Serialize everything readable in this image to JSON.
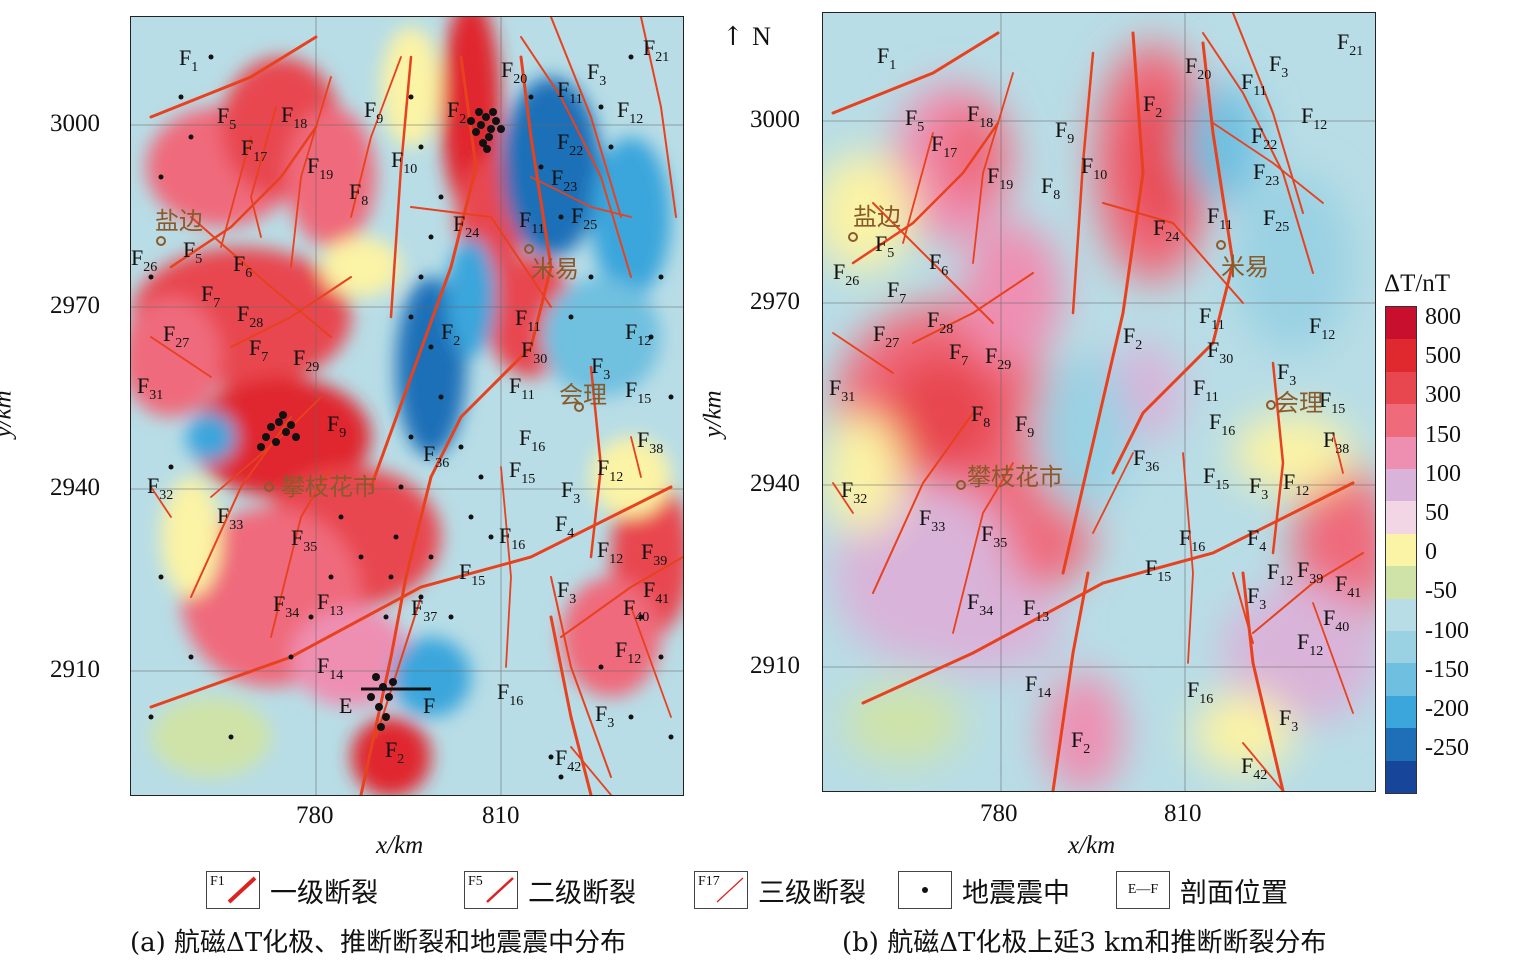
{
  "north": "N",
  "panel_a": {
    "y_ticks": [
      "3000",
      "2970",
      "2940",
      "2910"
    ],
    "x_ticks": [
      "780",
      "810"
    ],
    "x_axis_label": "x/km",
    "y_axis_label": "y/km",
    "cities": [
      "盐边",
      "米易",
      "会理",
      "攀枝花市"
    ],
    "profile_labels": [
      "E",
      "F"
    ],
    "caption": "(a) 航磁ΔT化极、推断断裂和地震震中分布"
  },
  "panel_b": {
    "y_ticks": [
      "3000",
      "2970",
      "2940",
      "2910"
    ],
    "x_ticks": [
      "780",
      "810"
    ],
    "x_axis_label": "x/km",
    "y_axis_label": "y/km",
    "cities": [
      "盐边",
      "米易",
      "会理",
      "攀枝花市"
    ],
    "caption": "(b) 航磁ΔT化极上延3 km和推断断裂分布"
  },
  "colorbar": {
    "title": "ΔT/nT",
    "labels": [
      "800",
      "500",
      "300",
      "150",
      "100",
      "50",
      "0",
      "-50",
      "-100",
      "-150",
      "-200",
      "-250"
    ],
    "colors": [
      "#c8102e",
      "#e0282f",
      "#e8474f",
      "#ef6b7c",
      "#ee8fb2",
      "#d9b3d9",
      "#f2d6e6",
      "#fbf3a5",
      "#cfe3a8",
      "#b8dde6",
      "#9ad1e3",
      "#6fc0e0",
      "#3aa6dc",
      "#1e6fb8",
      "#16459a"
    ]
  },
  "legend": {
    "first_order": "一级断裂",
    "second_order": "二级断裂",
    "third_order": "三级断裂",
    "epicenter": "地震震中",
    "profile": "剖面位置",
    "first_symbol": "F1",
    "second_symbol": "F5",
    "third_symbol": "F17",
    "profile_symbol": "E—F"
  }
}
